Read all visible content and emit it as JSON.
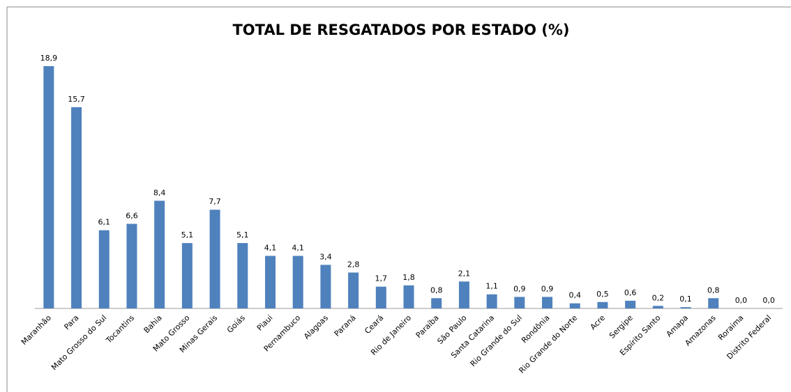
{
  "chart_data": {
    "type": "bar",
    "title": "TOTAL DE RESGATADOS POR ESTADO (%)",
    "categories": [
      "Maranhão",
      "Para",
      "Mato Grosso do Sul",
      "Tocantins",
      "Bahia",
      "Mato Grosso",
      "Minas Gerais",
      "Goiás",
      "Piaui",
      "Pernambuco",
      "Alagoas",
      "Paraná",
      "Ceará",
      "Rio de Janeiro",
      "Paraíba",
      "São Paulo",
      "Santa Catarina",
      "Rio Grande do Sul",
      "Rondônia",
      "Rio Grande do Norte",
      "Acre",
      "Sergipe",
      "Espírito Santo",
      "Amapa",
      "Amazonas",
      "Roraima",
      "Distrito Federal"
    ],
    "values": [
      18.9,
      15.7,
      6.1,
      6.6,
      8.4,
      5.1,
      7.7,
      5.1,
      4.1,
      4.1,
      3.4,
      2.8,
      1.7,
      1.8,
      0.8,
      2.1,
      1.1,
      0.9,
      0.9,
      0.4,
      0.5,
      0.6,
      0.2,
      0.1,
      0.8,
      0.0,
      0.0
    ],
    "value_labels": [
      "18,9",
      "15,7",
      "6,1",
      "6,6",
      "8,4",
      "5,1",
      "7,7",
      "5,1",
      "4,1",
      "4,1",
      "3,4",
      "2,8",
      "1,7",
      "1,8",
      "0,8",
      "2,1",
      "1,1",
      "0,9",
      "0,9",
      "0,4",
      "0,5",
      "0,6",
      "0,2",
      "0,1",
      "0,8",
      "0,0",
      "0,0"
    ],
    "color": "#4f81bd"
  }
}
